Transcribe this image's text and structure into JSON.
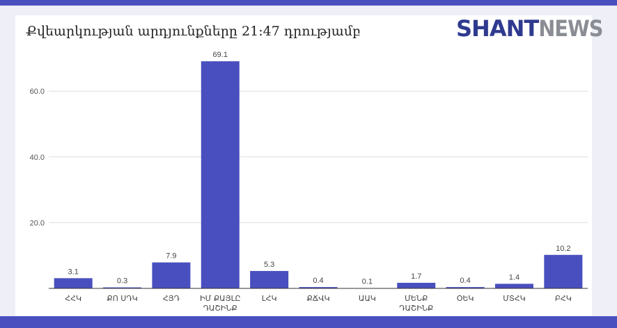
{
  "logo": {
    "brand": "SHANT",
    "suffix": "NEWS"
  },
  "chart_data": {
    "type": "bar",
    "title": "Քվեարկության արդյունքները 21:47 դրությամբ",
    "categories": [
      [
        "ՀՀԿ"
      ],
      [
        "ՔՈ ՍԴԿ"
      ],
      [
        "ՀՅԴ"
      ],
      [
        "ԻՄ ՔԱՅԼԸ",
        "ԴԱՇԻՆՔ"
      ],
      [
        "ԼՀԿ"
      ],
      [
        "ՔՃՎԿ"
      ],
      [
        "ԱԱԿ"
      ],
      [
        "ՄԵՆՔ",
        "ԴԱՇԻՆՔ"
      ],
      [
        "ՕԵԿ"
      ],
      [
        "ՄՏՀԿ"
      ],
      [
        "ԲՀԿ"
      ]
    ],
    "values": [
      3.1,
      0.3,
      7.9,
      69.1,
      5.3,
      0.4,
      0.1,
      1.7,
      0.4,
      1.4,
      10.2
    ],
    "data_labels": [
      "3.1",
      "0.3",
      "7.9",
      "69.1",
      "5.3",
      "0.4",
      "0.1",
      "1.7",
      "0.4",
      "1.4",
      "10.2"
    ],
    "yticks": [
      "20.0",
      "40.0",
      "60.0"
    ],
    "ylim": [
      0,
      70
    ],
    "grid": true,
    "bar_color": "#4a4fbf",
    "xlabel": "",
    "ylabel": ""
  }
}
